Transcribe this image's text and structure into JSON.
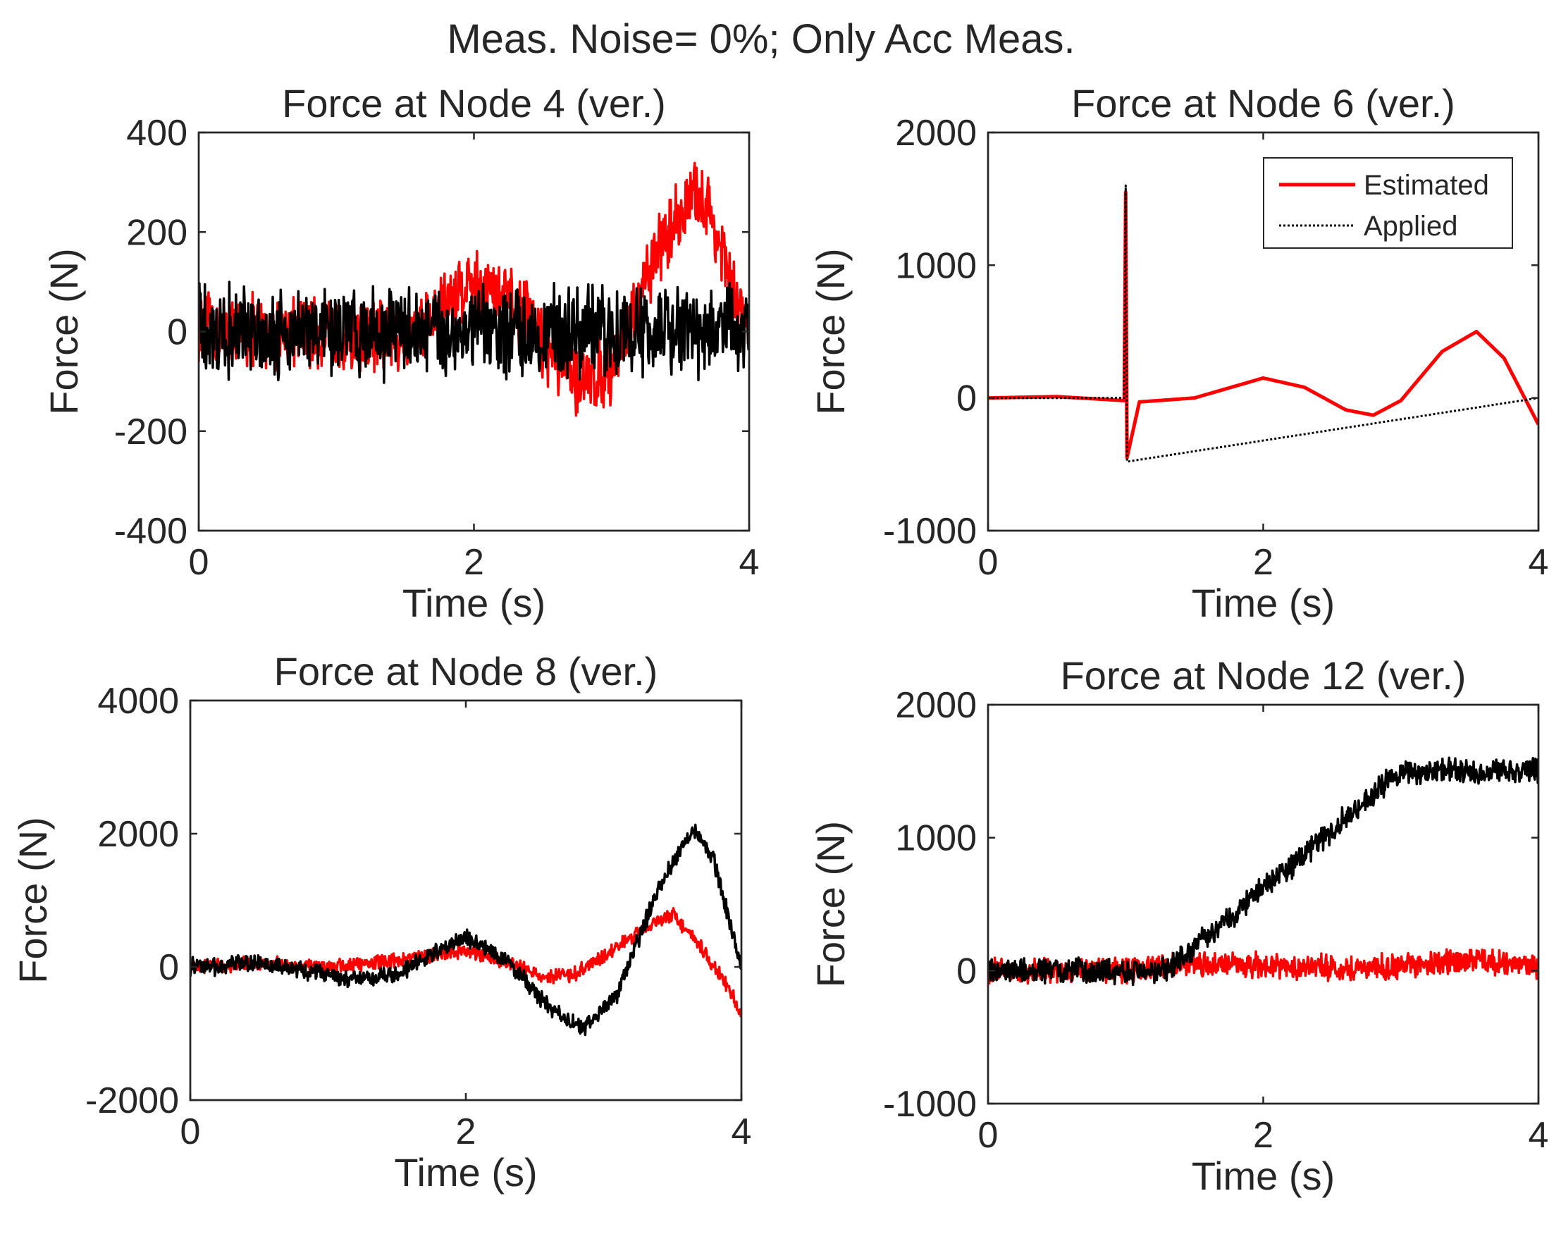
{
  "figure": {
    "suptitle": "Meas. Noise= 0%; Only Acc Meas.",
    "colors": {
      "estimated": "#ff0000",
      "applied": "#000000",
      "axis": "#262626"
    }
  },
  "chart_data": [
    {
      "type": "line",
      "title": "Force at Node 4 (ver.)",
      "xlabel": "Time (s)",
      "ylabel": "Force (N)",
      "xlim": [
        0,
        4
      ],
      "ylim": [
        -400,
        400
      ],
      "xticks": [
        "0",
        "2",
        "4"
      ],
      "yticks": [
        "-400",
        "-200",
        "0",
        "200",
        "400"
      ],
      "legend": null,
      "series": [
        {
          "name": "Estimated",
          "style": "solid",
          "noise": 60,
          "x": [
            0,
            0.5,
            1.0,
            1.5,
            1.7,
            1.9,
            2.0,
            2.2,
            2.4,
            2.6,
            2.8,
            3.0,
            3.2,
            3.3,
            3.5,
            3.6,
            3.7,
            3.8,
            3.9,
            4.0
          ],
          "y": [
            0,
            0,
            -10,
            -10,
            30,
            90,
            100,
            70,
            20,
            -60,
            -110,
            -70,
            50,
            150,
            240,
            270,
            250,
            160,
            60,
            0
          ]
        },
        {
          "name": "Applied",
          "style": "dotted",
          "noise": 75,
          "x": [
            0,
            1.0,
            2.0,
            3.0,
            4.0
          ],
          "y": [
            0,
            0,
            0,
            0,
            0
          ]
        }
      ]
    },
    {
      "type": "line",
      "title": "Force at Node 6 (ver.)",
      "xlabel": "Time (s)",
      "ylabel": "Force (N)",
      "xlim": [
        0,
        4
      ],
      "ylim": [
        -1000,
        2000
      ],
      "xticks": [
        "0",
        "2",
        "4"
      ],
      "yticks": [
        "-1000",
        "0",
        "1000",
        "2000"
      ],
      "legend": {
        "position": "top-right",
        "entries": [
          "Estimated",
          "Applied"
        ]
      },
      "series": [
        {
          "name": "Estimated",
          "style": "solid",
          "noise": 0,
          "x": [
            0,
            0.5,
            0.99,
            1.0,
            1.01,
            1.1,
            1.5,
            2.0,
            2.3,
            2.6,
            2.8,
            3.0,
            3.3,
            3.55,
            3.75,
            4.0
          ],
          "y": [
            0,
            10,
            -20,
            1550,
            -450,
            -30,
            0,
            150,
            80,
            -90,
            -130,
            -20,
            350,
            500,
            300,
            -200
          ]
        },
        {
          "name": "Applied",
          "style": "dotted",
          "noise": 0,
          "x": [
            0,
            0.99,
            1.0,
            1.01,
            4.0
          ],
          "y": [
            0,
            0,
            1600,
            -480,
            0
          ]
        }
      ]
    },
    {
      "type": "line",
      "title": "Force at Node 8 (ver.)",
      "xlabel": "Time (s)",
      "ylabel": "Force (N)",
      "xlim": [
        0,
        4
      ],
      "ylim": [
        -2000,
        4000
      ],
      "xticks": [
        "0",
        "2",
        "4"
      ],
      "yticks": [
        "-2000",
        "0",
        "2000",
        "4000"
      ],
      "legend": null,
      "series": [
        {
          "name": "Estimated",
          "style": "solid",
          "noise": 90,
          "x": [
            0,
            0.5,
            1.0,
            1.5,
            2.0,
            2.3,
            2.6,
            2.8,
            3.0,
            3.3,
            3.5,
            3.7,
            3.9,
            4.0
          ],
          "y": [
            0,
            50,
            0,
            100,
            250,
            50,
            -150,
            -100,
            150,
            600,
            800,
            300,
            -300,
            -700
          ]
        },
        {
          "name": "Applied",
          "style": "dotted",
          "noise": 110,
          "x": [
            0,
            0.5,
            1.0,
            1.25,
            1.5,
            2.0,
            2.3,
            2.6,
            2.85,
            3.1,
            3.4,
            3.65,
            3.8,
            3.95,
            4.0
          ],
          "y": [
            0,
            50,
            -100,
            -200,
            -100,
            450,
            100,
            -600,
            -950,
            -400,
            1200,
            2100,
            1600,
            400,
            0
          ]
        }
      ]
    },
    {
      "type": "line",
      "title": "Force at Node 12 (ver.)",
      "xlabel": "Time (s)",
      "ylabel": "Force (N)",
      "xlim": [
        0,
        4
      ],
      "ylim": [
        -1000,
        2000
      ],
      "xticks": [
        "0",
        "2",
        "4"
      ],
      "yticks": [
        "-1000",
        "0",
        "1000",
        "2000"
      ],
      "legend": null,
      "series": [
        {
          "name": "Estimated",
          "style": "solid",
          "noise": 80,
          "x": [
            0,
            1.0,
            1.5,
            2.0,
            2.5,
            3.0,
            3.5,
            4.0
          ],
          "y": [
            0,
            0,
            50,
            40,
            20,
            30,
            80,
            30
          ]
        },
        {
          "name": "Applied",
          "style": "dotted",
          "noise": 80,
          "x": [
            0,
            1.3,
            3.0,
            4.0
          ],
          "y": [
            0,
            0,
            1500,
            1500
          ]
        }
      ]
    }
  ]
}
